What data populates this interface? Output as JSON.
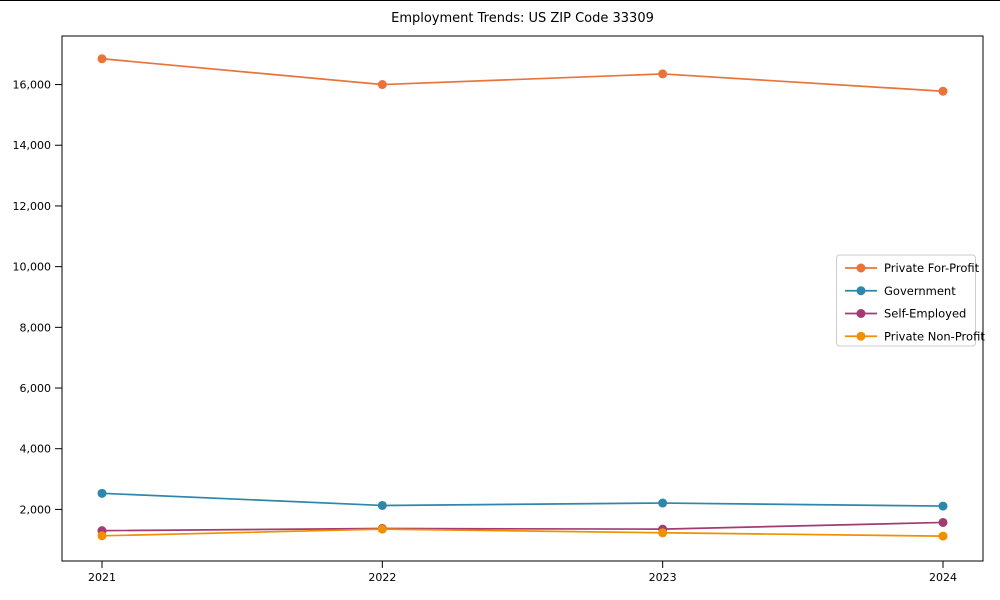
{
  "chart_data": {
    "type": "line",
    "title": "Employment Trends: US ZIP Code 33309",
    "categories": [
      "2021",
      "2022",
      "2023",
      "2024"
    ],
    "series": [
      {
        "name": "Private For-Profit",
        "color": "#E8743B",
        "values": [
          16850,
          16000,
          16350,
          15780
        ]
      },
      {
        "name": "Government",
        "color": "#2E86AB",
        "values": [
          2530,
          2130,
          2210,
          2110
        ]
      },
      {
        "name": "Self-Employed",
        "color": "#A23B72",
        "values": [
          1300,
          1370,
          1350,
          1570
        ]
      },
      {
        "name": "Private Non-Profit",
        "color": "#F18F01",
        "values": [
          1130,
          1350,
          1230,
          1120
        ]
      }
    ],
    "xlabel": "",
    "ylabel": "",
    "ylim": [
      300,
      17600
    ],
    "yticks": [
      2000,
      4000,
      6000,
      8000,
      10000,
      12000,
      14000,
      16000
    ],
    "ytick_labels": [
      "2,000",
      "4,000",
      "6,000",
      "8,000",
      "10,000",
      "12,000",
      "14,000",
      "16,000"
    ],
    "grid": false,
    "legend_position": "center right",
    "marker": "circle",
    "axis_color": "#000000",
    "legend_border_color": "#cccccc",
    "background": "#ffffff"
  }
}
